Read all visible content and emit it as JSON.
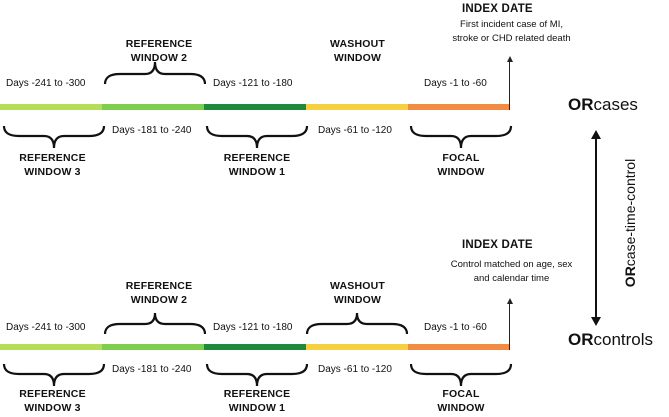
{
  "cases": {
    "index_title": "INDEX DATE",
    "index_sub_1": "First incident case of MI,",
    "index_sub_2": "stroke or CHD related death",
    "top_labels": {
      "w3_days": "Days -241 to -300",
      "w2_title_1": "REFERENCE",
      "w2_title_2": "WINDOW 2",
      "w1_days": "Days -121 to -180",
      "wash_title_1": "WASHOUT",
      "wash_title_2": "WINDOW",
      "focal_days": "Days -1 to -60"
    },
    "bottom_labels": {
      "w3_title_1": "REFERENCE",
      "w3_title_2": "WINDOW 3",
      "w2_days": "Days -181 to -240",
      "w1_title_1": "REFERENCE",
      "w1_title_2": "WINDOW 1",
      "wash_days": "Days -61 to -120",
      "focal_title_1": "FOCAL",
      "focal_title_2": "WINDOW"
    }
  },
  "controls": {
    "index_title": "INDEX DATE",
    "index_sub_1": "Control matched on age, sex",
    "index_sub_2": "and calendar time",
    "top_labels": {
      "w3_days": "Days -241 to -300",
      "w2_title_1": "REFERENCE",
      "w2_title_2": "WINDOW 2",
      "w1_days": "Days -121 to -180",
      "wash_title_1": "WASHOUT",
      "wash_title_2": "WINDOW",
      "focal_days": "Days -1 to -60"
    },
    "bottom_labels": {
      "w3_title_1": "REFERENCE",
      "w3_title_2": "WINDOW 3",
      "w2_days": "Days -181 to -240",
      "w1_title_1": "REFERENCE",
      "w1_title_2": "WINDOW 1",
      "wash_days": "Days -61 to -120",
      "focal_title_1": "FOCAL",
      "focal_title_2": "WINDOW"
    }
  },
  "or_labels": {
    "cases_bold": "OR",
    "cases_rest": "cases",
    "vertical_bold": "OR",
    "vertical_rest": "case-time-control",
    "controls_bold": "OR",
    "controls_rest": "controls"
  },
  "colors": {
    "window3": "#b5dd5a",
    "window2": "#7fcf4e",
    "window1": "#1f8a3c",
    "washout": "#f5d040",
    "focal": "#f28c45"
  }
}
